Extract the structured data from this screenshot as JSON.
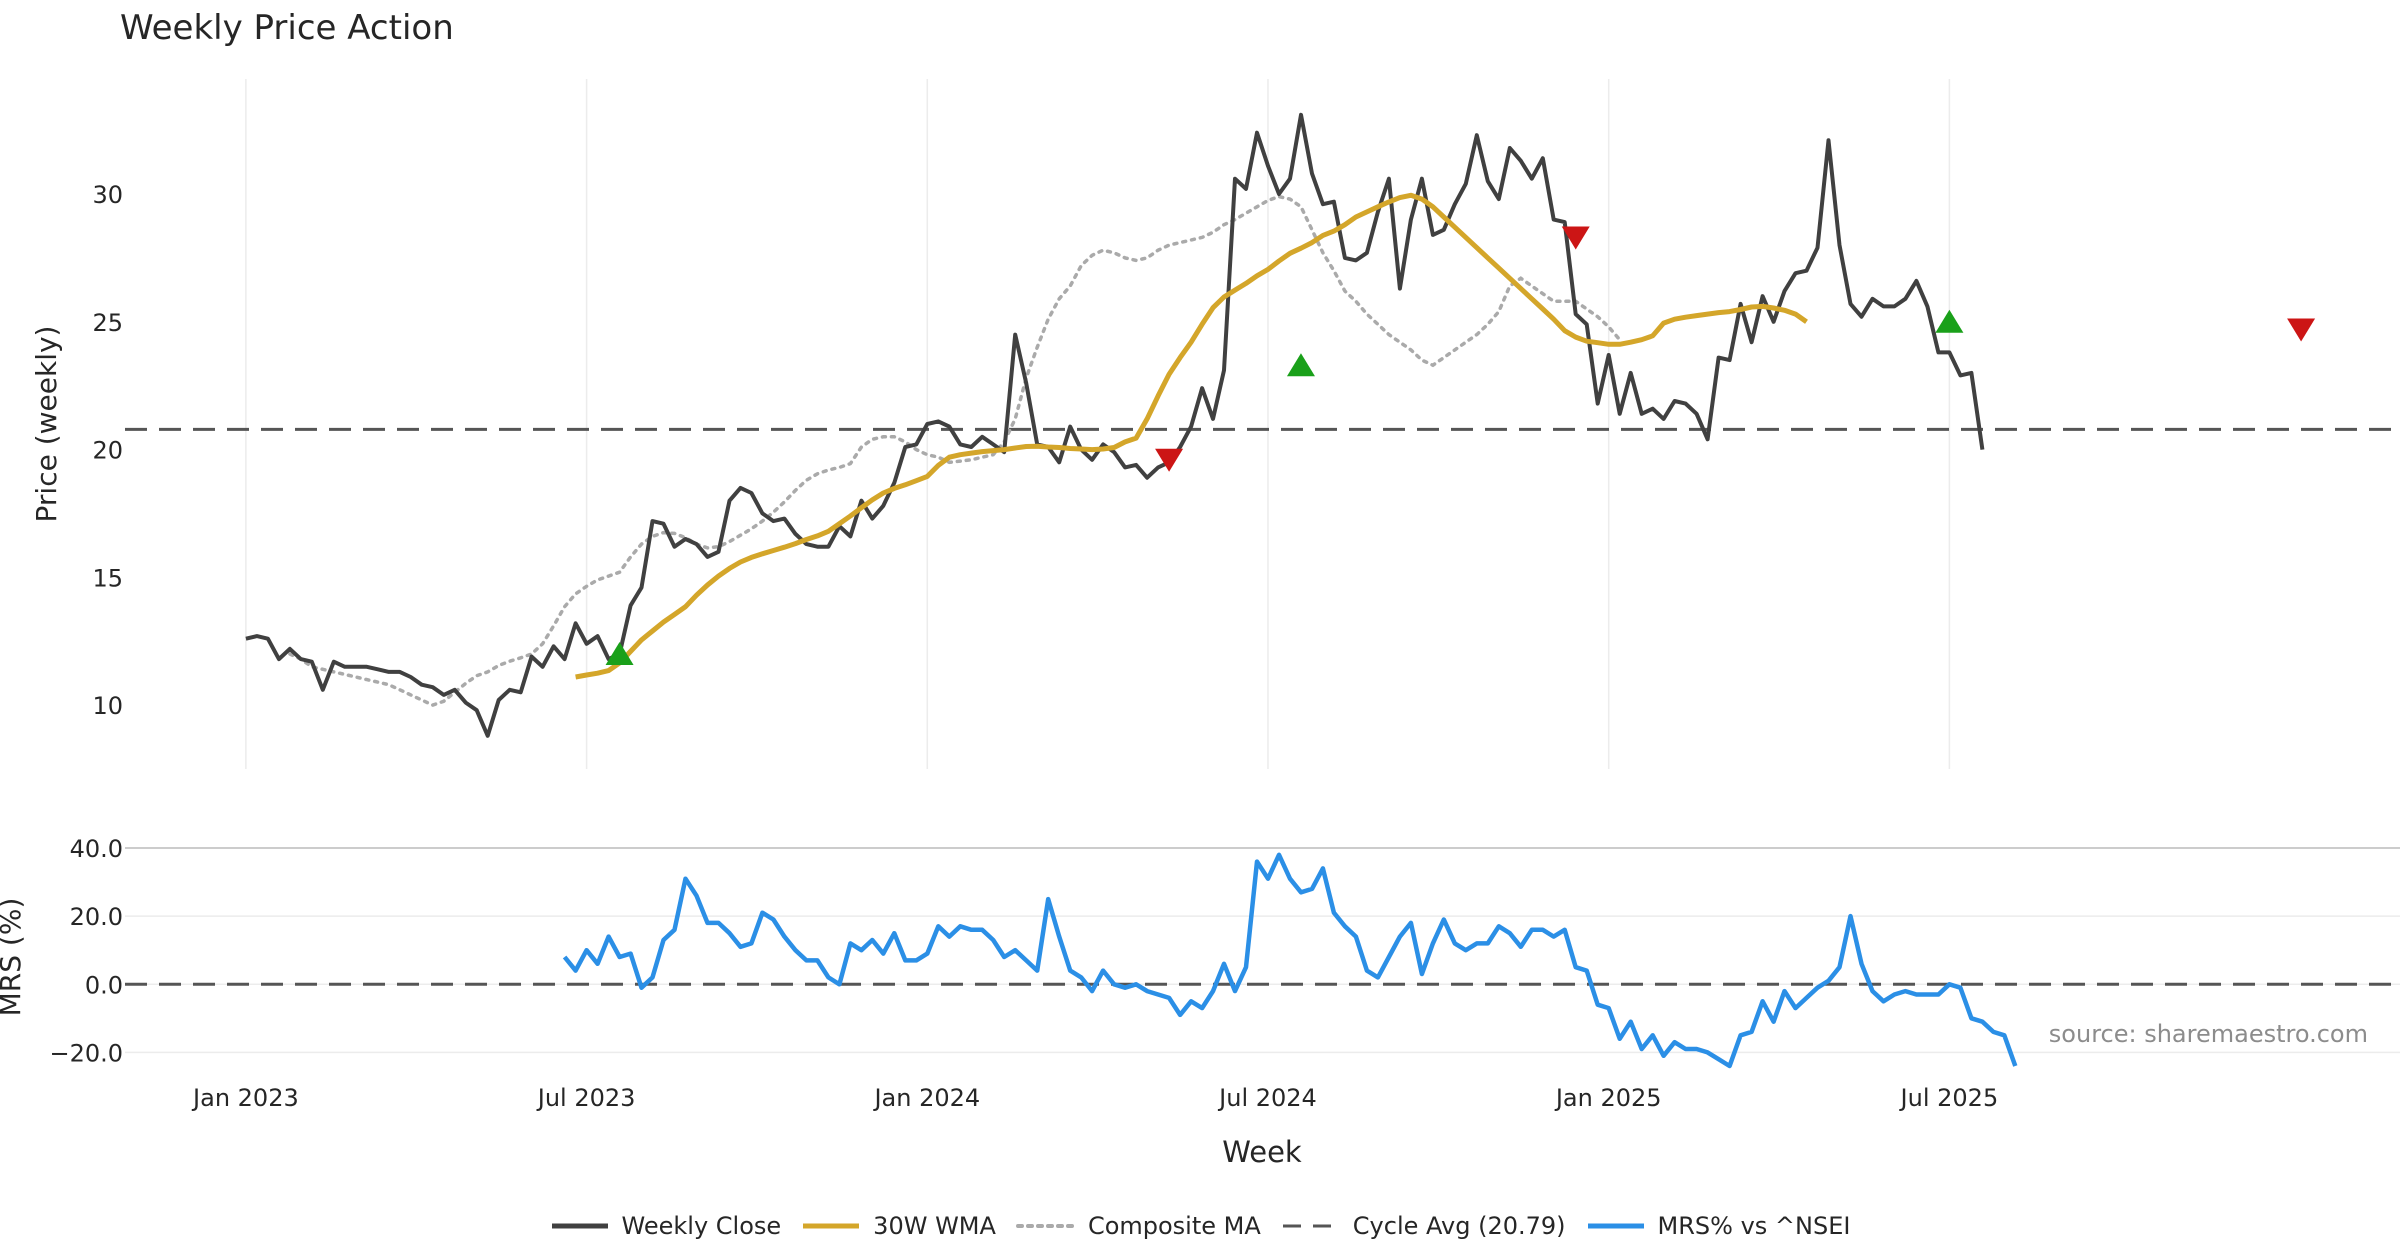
{
  "chart_data": [
    {
      "type": "line",
      "title": "Weekly Price Action",
      "ylabel": "Price (weekly)",
      "ylim": [
        7.5,
        34.5
      ],
      "yticks": [
        10,
        15,
        20,
        25,
        30
      ],
      "xlim": [
        -11,
        196
      ],
      "x_tick_positions": [
        0,
        31,
        62,
        93,
        124,
        155
      ],
      "cycle_avg": 20.79,
      "weekly_close": [
        12.6,
        12.7,
        12.6,
        11.8,
        12.2,
        11.8,
        11.7,
        10.6,
        11.7,
        11.5,
        11.5,
        11.5,
        11.4,
        11.3,
        11.3,
        11.1,
        10.8,
        10.7,
        10.4,
        10.6,
        10.1,
        9.8,
        8.8,
        10.2,
        10.6,
        10.5,
        11.9,
        11.5,
        12.3,
        11.8,
        13.2,
        12.4,
        12.7,
        11.8,
        12.0,
        13.9,
        14.6,
        17.2,
        17.1,
        16.2,
        16.5,
        16.3,
        15.8,
        16.0,
        18.0,
        18.5,
        18.3,
        17.5,
        17.2,
        17.3,
        16.7,
        16.3,
        16.2,
        16.2,
        17.0,
        16.6,
        18.0,
        17.3,
        17.8,
        18.7,
        20.1,
        20.2,
        21.0,
        21.1,
        20.9,
        20.2,
        20.1,
        20.5,
        20.2,
        19.9,
        24.5,
        22.6,
        20.2,
        20.1,
        19.5,
        20.9,
        20.0,
        19.6,
        20.2,
        19.9,
        19.3,
        19.4,
        18.9,
        19.3,
        19.5,
        20.1,
        20.9,
        22.4,
        21.2,
        23.1,
        30.6,
        30.2,
        32.4,
        31.1,
        30.0,
        30.6,
        33.1,
        30.8,
        29.6,
        29.7,
        27.5,
        27.4,
        27.7,
        29.3,
        30.6,
        26.3,
        29.0,
        30.6,
        28.4,
        28.6,
        29.6,
        30.4,
        32.3,
        30.5,
        29.8,
        31.8,
        31.3,
        30.6,
        31.4,
        29.0,
        28.9,
        25.3,
        24.9,
        21.8,
        23.7,
        21.4,
        23.0,
        21.4,
        21.6,
        21.2,
        21.9,
        21.8,
        21.4,
        20.4,
        23.6,
        23.5,
        25.7,
        24.2,
        26.0,
        25.0,
        26.2,
        26.9,
        27.0,
        27.9,
        32.1,
        28.0,
        25.7,
        25.2,
        25.9,
        25.6,
        25.6,
        25.9,
        26.6,
        25.6,
        23.8,
        23.8,
        22.9,
        23.0,
        20.0
      ],
      "wma_30w": [
        11.1,
        11.18,
        11.25,
        11.35,
        11.65,
        12.1,
        12.55,
        12.9,
        13.25,
        13.55,
        13.85,
        14.3,
        14.7,
        15.05,
        15.35,
        15.6,
        15.78,
        15.92,
        16.05,
        16.18,
        16.32,
        16.48,
        16.62,
        16.8,
        17.1,
        17.4,
        17.72,
        18.03,
        18.3,
        18.48,
        18.62,
        18.78,
        18.95,
        19.38,
        19.7,
        19.8,
        19.86,
        19.92,
        19.96,
        20.0,
        20.06,
        20.12,
        20.13,
        20.1,
        20.08,
        20.04,
        20.02,
        20.0,
        20.02,
        20.08,
        20.3,
        20.45,
        21.2,
        22.1,
        22.95,
        23.6,
        24.2,
        24.9,
        25.55,
        25.97,
        26.24,
        26.5,
        26.8,
        27.05,
        27.38,
        27.68,
        27.88,
        28.1,
        28.38,
        28.55,
        28.8,
        29.1,
        29.3,
        29.5,
        29.69,
        29.86,
        29.95,
        29.8,
        29.5,
        29.1,
        28.7,
        28.3,
        27.9,
        27.5,
        27.1,
        26.7,
        26.3,
        25.9,
        25.5,
        25.1,
        24.65,
        24.4,
        24.24,
        24.18,
        24.12,
        24.12,
        24.2,
        24.3,
        24.45,
        24.95,
        25.1,
        25.18,
        25.24,
        25.3,
        25.36,
        25.4,
        25.48,
        25.58,
        25.6,
        25.54,
        25.45,
        25.3,
        25.0
      ],
      "composite_ma": [
        null,
        null,
        null,
        null,
        12.0,
        11.8,
        11.5,
        11.4,
        11.3,
        11.2,
        11.1,
        11.0,
        10.9,
        10.8,
        10.6,
        10.4,
        10.2,
        10.0,
        10.15,
        10.5,
        10.85,
        11.15,
        11.3,
        11.55,
        11.72,
        11.85,
        12.0,
        12.4,
        13.1,
        13.85,
        14.35,
        14.65,
        14.9,
        15.05,
        15.2,
        15.8,
        16.3,
        16.6,
        16.75,
        16.72,
        16.55,
        16.3,
        16.15,
        16.2,
        16.4,
        16.65,
        16.9,
        17.2,
        17.55,
        17.95,
        18.4,
        18.8,
        19.05,
        19.2,
        19.3,
        19.45,
        20.1,
        20.4,
        20.5,
        20.5,
        20.3,
        20.0,
        19.8,
        19.7,
        19.5,
        19.55,
        19.6,
        19.7,
        19.8,
        20.3,
        21.2,
        22.8,
        24.0,
        25.1,
        25.9,
        26.4,
        27.2,
        27.6,
        27.8,
        27.7,
        27.5,
        27.4,
        27.5,
        27.8,
        28.0,
        28.1,
        28.2,
        28.3,
        28.5,
        28.8,
        29.0,
        29.25,
        29.5,
        29.75,
        29.9,
        29.8,
        29.5,
        28.6,
        27.7,
        27.0,
        26.2,
        25.8,
        25.3,
        24.9,
        24.5,
        24.2,
        23.9,
        23.5,
        23.3,
        23.6,
        23.9,
        24.2,
        24.5,
        24.9,
        25.4,
        26.4,
        26.7,
        26.4,
        26.1,
        25.8,
        25.8,
        25.8,
        25.5,
        25.2,
        24.8,
        24.3
      ],
      "buy_signals": [
        {
          "x": 34,
          "y": 12.0
        },
        {
          "x": 96,
          "y": 23.3
        },
        {
          "x": 155,
          "y": 25.0
        }
      ],
      "sell_signals": [
        {
          "x": 84,
          "y": 19.6
        },
        {
          "x": 121,
          "y": 28.3
        },
        {
          "x": 187,
          "y": 24.7
        }
      ]
    },
    {
      "type": "line",
      "ylabel": "MRS (%)",
      "xlabel": "Week",
      "ylim": [
        -24,
        40
      ],
      "yticks": [
        40.0,
        20.0,
        0.0,
        -20.0
      ],
      "x_tick_labels": [
        "Jan 2023",
        "Jul 2023",
        "Jan 2024",
        "Jul 2024",
        "Jan 2025",
        "Jul 2025"
      ],
      "mrs_start_week": 29,
      "mrs": [
        8,
        4,
        10,
        6,
        14,
        8,
        9,
        -1,
        2,
        13,
        16,
        31,
        26,
        18,
        18,
        15,
        11,
        12,
        21,
        19,
        14,
        10,
        7,
        7,
        2,
        0,
        12,
        10,
        13,
        9,
        15,
        7,
        7,
        9,
        17,
        14,
        17,
        16,
        16,
        13,
        8,
        10,
        7,
        4,
        25,
        14,
        4,
        2,
        -2,
        4,
        0,
        -1,
        0,
        -2,
        -3,
        -4,
        -9,
        -5,
        -7,
        -2,
        6,
        -2,
        5,
        36,
        31,
        38,
        31,
        27,
        28,
        34,
        21,
        17,
        14,
        4,
        2,
        8,
        14,
        18,
        3,
        12,
        19,
        12,
        10,
        12,
        12,
        17,
        15,
        11,
        16,
        16,
        14,
        16,
        5,
        4,
        -6,
        -7,
        -16,
        -11,
        -19,
        -15,
        -21,
        -17,
        -19,
        -19,
        -20,
        -22,
        -24,
        -15,
        -14,
        -5,
        -11,
        -2,
        -7,
        -4,
        -1,
        1,
        5,
        20,
        6,
        -2,
        -5,
        -3,
        -2,
        -3,
        -3,
        -3,
        0,
        -1,
        -10,
        -11,
        -14,
        -15,
        -24
      ],
      "source_note": "source: sharemaestro.com",
      "legend": {
        "weekly_close": "Weekly Close",
        "wma": "30W WMA",
        "composite": "Composite MA",
        "cycle": "Cycle Avg (20.79)",
        "mrs": "MRS% vs ^NSEI"
      },
      "colors": {
        "close": "#404040",
        "wma": "#d4a62a",
        "composite": "#aaaaaa",
        "cycle": "#555555",
        "mrs": "#2b8fe6",
        "buy": "#1aa01a",
        "sell": "#cc1515",
        "grid": "#ececec"
      }
    }
  ]
}
